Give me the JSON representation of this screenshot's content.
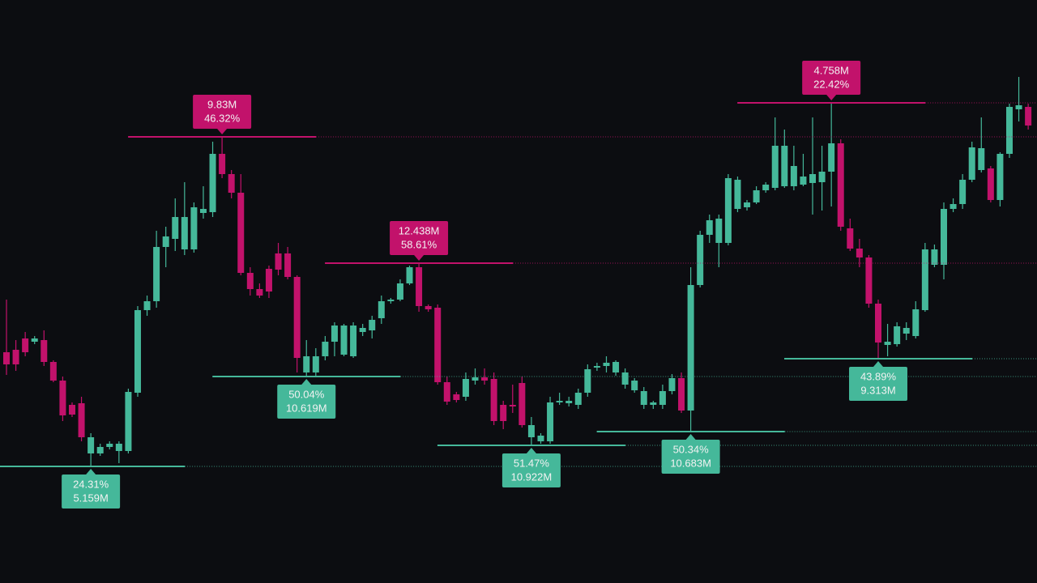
{
  "chart_data": {
    "type": "candlestick",
    "up_color": "#45b89a",
    "down_color": "#c2126b",
    "ylim": [
      0,
      720
    ],
    "candles": [
      [
        285,
        350,
        257,
        270
      ],
      [
        288,
        300,
        262,
        270
      ],
      [
        302,
        310,
        280,
        285
      ],
      [
        298,
        305,
        295,
        302
      ],
      [
        300,
        312,
        268,
        273
      ],
      [
        273,
        275,
        248,
        250
      ],
      [
        250,
        255,
        200,
        207
      ],
      [
        220,
        223,
        205,
        208
      ],
      [
        222,
        230,
        175,
        180
      ],
      [
        160,
        185,
        144,
        180
      ],
      [
        160,
        172,
        157,
        168
      ],
      [
        168,
        175,
        165,
        172
      ],
      [
        163,
        175,
        148,
        172
      ],
      [
        163,
        240,
        160,
        236
      ],
      [
        235,
        342,
        230,
        337
      ],
      [
        337,
        355,
        330,
        348
      ],
      [
        348,
        435,
        340,
        415
      ],
      [
        415,
        440,
        390,
        428
      ],
      [
        425,
        475,
        410,
        452
      ],
      [
        412,
        495,
        405,
        452
      ],
      [
        412,
        470,
        408,
        464
      ],
      [
        457,
        490,
        450,
        462
      ],
      [
        458,
        545,
        452,
        530
      ],
      [
        530,
        551,
        500,
        505
      ],
      [
        505,
        510,
        475,
        482
      ],
      [
        482,
        505,
        380,
        383
      ],
      [
        383,
        390,
        355,
        363
      ],
      [
        363,
        370,
        352,
        355
      ],
      [
        388,
        392,
        352,
        360
      ],
      [
        407,
        420,
        380,
        387
      ],
      [
        407,
        415,
        375,
        378
      ],
      [
        378,
        380,
        260,
        278
      ],
      [
        260,
        300,
        255,
        280
      ],
      [
        260,
        290,
        256,
        280
      ],
      [
        280,
        305,
        275,
        298
      ],
      [
        298,
        322,
        280,
        318
      ],
      [
        282,
        320,
        280,
        318
      ],
      [
        280,
        322,
        278,
        318
      ],
      [
        310,
        320,
        305,
        315
      ],
      [
        312,
        330,
        302,
        325
      ],
      [
        327,
        355,
        320,
        348
      ],
      [
        348,
        352,
        345,
        350
      ],
      [
        350,
        375,
        348,
        370
      ],
      [
        370,
        392,
        368,
        390
      ],
      [
        390,
        395,
        335,
        342
      ],
      [
        342,
        344,
        335,
        338
      ],
      [
        340,
        344,
        245,
        248
      ],
      [
        248,
        255,
        220,
        224
      ],
      [
        233,
        236,
        223,
        226
      ],
      [
        230,
        260,
        225,
        252
      ],
      [
        250,
        265,
        245,
        254
      ],
      [
        254,
        265,
        245,
        250
      ],
      [
        252,
        260,
        195,
        200
      ],
      [
        220,
        225,
        190,
        200
      ],
      [
        220,
        245,
        210,
        218
      ],
      [
        247,
        255,
        192,
        195
      ],
      [
        180,
        205,
        170,
        195
      ],
      [
        175,
        185,
        172,
        182
      ],
      [
        175,
        230,
        172,
        223
      ],
      [
        223,
        235,
        220,
        225
      ],
      [
        222,
        230,
        218,
        225
      ],
      [
        220,
        240,
        215,
        235
      ],
      [
        235,
        270,
        230,
        264
      ],
      [
        266,
        272,
        262,
        268
      ],
      [
        268,
        280,
        260,
        272
      ],
      [
        260,
        275,
        256,
        273
      ],
      [
        245,
        265,
        240,
        260
      ],
      [
        238,
        253,
        235,
        250
      ],
      [
        220,
        242,
        215,
        237
      ],
      [
        220,
        225,
        215,
        223
      ],
      [
        220,
        245,
        215,
        237
      ],
      [
        237,
        258,
        233,
        253
      ],
      [
        253,
        260,
        210,
        213
      ],
      [
        213,
        390,
        187,
        368
      ],
      [
        368,
        435,
        365,
        430
      ],
      [
        430,
        455,
        420,
        448
      ],
      [
        420,
        455,
        390,
        450
      ],
      [
        420,
        505,
        417,
        500
      ],
      [
        462,
        502,
        458,
        498
      ],
      [
        464,
        473,
        460,
        470
      ],
      [
        470,
        490,
        468,
        485
      ],
      [
        485,
        495,
        482,
        492
      ],
      [
        488,
        575,
        485,
        540
      ],
      [
        490,
        560,
        488,
        540
      ],
      [
        490,
        540,
        485,
        515
      ],
      [
        492,
        530,
        490,
        502
      ],
      [
        494,
        575,
        455,
        505
      ],
      [
        495,
        540,
        460,
        508
      ],
      [
        508,
        593,
        465,
        543
      ],
      [
        543,
        548,
        435,
        440
      ],
      [
        438,
        450,
        410,
        413
      ],
      [
        413,
        425,
        390,
        402
      ],
      [
        402,
        405,
        340,
        345
      ],
      [
        345,
        350,
        277,
        297
      ],
      [
        294,
        320,
        280,
        298
      ],
      [
        295,
        322,
        292,
        317
      ],
      [
        308,
        322,
        300,
        315
      ],
      [
        305,
        348,
        302,
        338
      ],
      [
        337,
        420,
        335,
        412
      ],
      [
        393,
        418,
        390,
        412
      ],
      [
        393,
        470,
        375,
        462
      ],
      [
        462,
        475,
        458,
        468
      ],
      [
        468,
        505,
        462,
        498
      ],
      [
        498,
        545,
        495,
        538
      ],
      [
        510,
        575,
        507,
        537
      ],
      [
        512,
        515,
        470,
        473
      ],
      [
        473,
        532,
        465,
        530
      ],
      [
        530,
        592,
        525,
        588
      ],
      [
        585,
        625,
        570,
        590
      ],
      [
        588,
        592,
        560,
        565
      ]
    ],
    "pivot_highs": [
      {
        "value": 551,
        "labels": [
          "9.83M",
          "46.32%"
        ]
      },
      {
        "value": 395,
        "labels": [
          "12.438M",
          "58.61%"
        ]
      },
      {
        "value": 593,
        "labels": [
          "4.758M",
          "22.42%"
        ]
      }
    ],
    "pivot_lows": [
      {
        "value": 144,
        "labels": [
          "24.31%",
          "5.159M"
        ]
      },
      {
        "value": 255,
        "labels": [
          "50.04%",
          "10.619M"
        ]
      },
      {
        "value": 170,
        "labels": [
          "51.47%",
          "10.922M"
        ]
      },
      {
        "value": 187,
        "labels": [
          "50.34%",
          "10.683M"
        ]
      },
      {
        "value": 277,
        "labels": [
          "43.89%",
          "9.313M"
        ]
      }
    ]
  }
}
